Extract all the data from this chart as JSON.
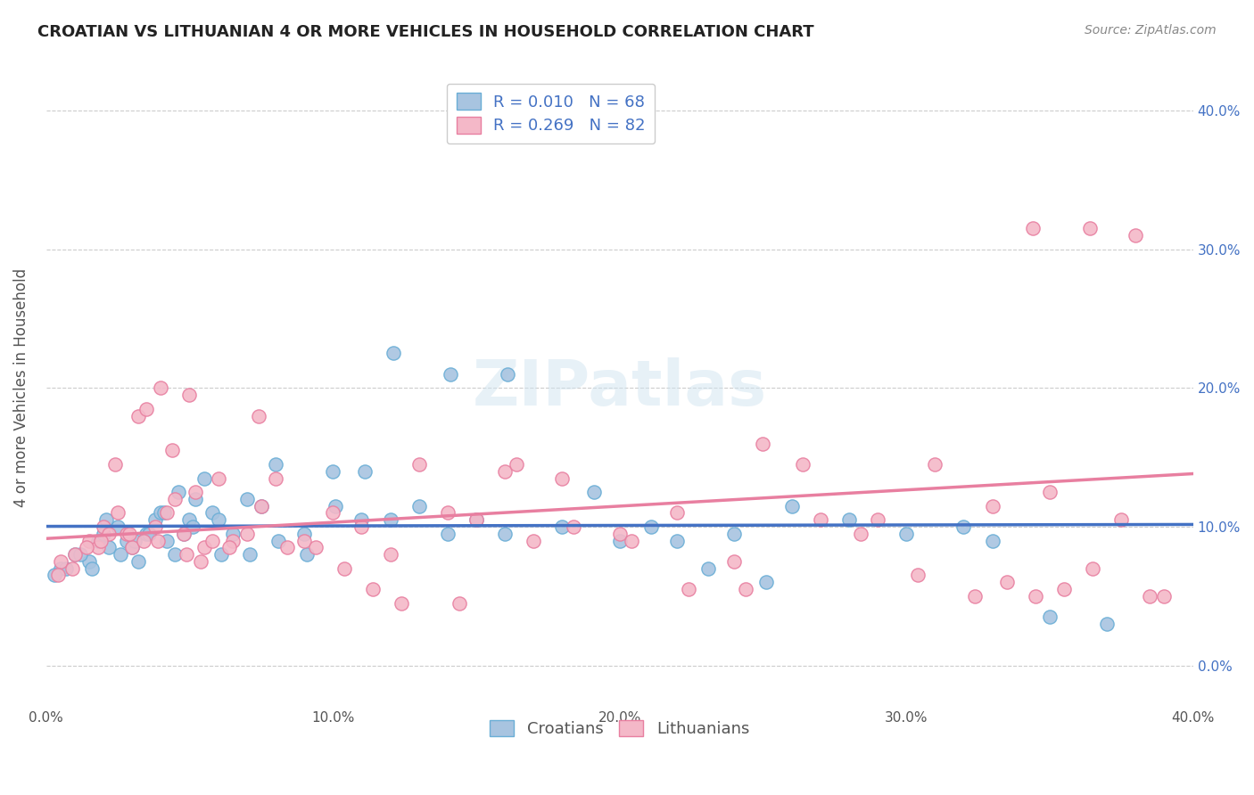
{
  "title": "CROATIAN VS LITHUANIAN 4 OR MORE VEHICLES IN HOUSEHOLD CORRELATION CHART",
  "source": "Source: ZipAtlas.com",
  "ylabel": "4 or more Vehicles in Household",
  "ytick_values": [
    0.0,
    10.0,
    20.0,
    30.0,
    40.0
  ],
  "xrange": [
    0.0,
    40.0
  ],
  "yrange": [
    -3.0,
    43.0
  ],
  "croatian_color": "#a8c4e0",
  "croatian_edge": "#6aaed6",
  "croatian_line_color": "#4472c4",
  "lithuanian_color": "#f4b8c8",
  "lithuanian_edge": "#e87fa0",
  "lithuanian_line_color": "#e87fa0",
  "legend_text_color": "#4472c4",
  "R_croatian": 0.01,
  "N_croatian": 68,
  "R_lithuanian": 0.269,
  "N_lithuanian": 82,
  "croatian_scatter_x": [
    0.5,
    1.0,
    1.5,
    1.8,
    2.0,
    2.2,
    2.5,
    2.8,
    3.0,
    3.2,
    3.5,
    3.8,
    4.0,
    4.2,
    4.5,
    4.8,
    5.0,
    5.2,
    5.5,
    5.8,
    6.0,
    6.5,
    7.0,
    7.5,
    8.0,
    9.0,
    10.0,
    11.0,
    12.0,
    13.0,
    14.0,
    15.0,
    16.0,
    18.0,
    20.0,
    22.0,
    24.0,
    26.0,
    28.0,
    30.0,
    32.0,
    33.0,
    35.0,
    37.0,
    0.3,
    0.7,
    1.2,
    1.6,
    2.1,
    2.6,
    3.1,
    3.6,
    4.1,
    4.6,
    5.1,
    6.1,
    7.1,
    8.1,
    9.1,
    10.1,
    11.1,
    12.1,
    14.1,
    16.1,
    19.1,
    21.1,
    23.1,
    25.1
  ],
  "croatian_scatter_y": [
    7.0,
    8.0,
    7.5,
    9.0,
    9.5,
    8.5,
    10.0,
    9.0,
    8.5,
    7.5,
    9.5,
    10.5,
    11.0,
    9.0,
    8.0,
    9.5,
    10.5,
    12.0,
    13.5,
    11.0,
    10.5,
    9.5,
    12.0,
    11.5,
    14.5,
    9.5,
    14.0,
    10.5,
    10.5,
    11.5,
    9.5,
    10.5,
    9.5,
    10.0,
    9.0,
    9.0,
    9.5,
    11.5,
    10.5,
    9.5,
    10.0,
    9.0,
    3.5,
    3.0,
    6.5,
    7.0,
    8.0,
    7.0,
    10.5,
    8.0,
    9.0,
    9.5,
    11.0,
    12.5,
    10.0,
    8.0,
    8.0,
    9.0,
    8.0,
    11.5,
    14.0,
    22.5,
    21.0,
    21.0,
    12.5,
    10.0,
    7.0,
    6.0
  ],
  "lithuanian_scatter_x": [
    0.5,
    1.0,
    1.5,
    1.8,
    2.0,
    2.2,
    2.5,
    2.8,
    3.0,
    3.2,
    3.5,
    3.8,
    4.0,
    4.2,
    4.5,
    4.8,
    5.0,
    5.2,
    5.5,
    5.8,
    6.0,
    6.5,
    7.0,
    7.5,
    8.0,
    9.0,
    10.0,
    11.0,
    12.0,
    13.0,
    14.0,
    15.0,
    16.0,
    17.0,
    18.0,
    20.0,
    22.0,
    24.0,
    25.0,
    27.0,
    29.0,
    31.0,
    33.0,
    35.0,
    0.4,
    0.9,
    1.4,
    1.9,
    2.4,
    2.9,
    3.4,
    3.9,
    4.4,
    4.9,
    5.4,
    6.4,
    7.4,
    8.4,
    9.4,
    10.4,
    11.4,
    12.4,
    14.4,
    16.4,
    18.4,
    20.4,
    22.4,
    24.4,
    26.4,
    28.4,
    30.4,
    32.4,
    34.4,
    36.4,
    38.0,
    39.0,
    38.5,
    37.5,
    36.5,
    35.5,
    34.5,
    33.5
  ],
  "lithuanian_scatter_y": [
    7.5,
    8.0,
    9.0,
    8.5,
    10.0,
    9.5,
    11.0,
    9.5,
    8.5,
    18.0,
    18.5,
    10.0,
    20.0,
    11.0,
    12.0,
    9.5,
    19.5,
    12.5,
    8.5,
    9.0,
    13.5,
    9.0,
    9.5,
    11.5,
    13.5,
    9.0,
    11.0,
    10.0,
    8.0,
    14.5,
    11.0,
    10.5,
    14.0,
    9.0,
    13.5,
    9.5,
    11.0,
    7.5,
    16.0,
    10.5,
    10.5,
    14.5,
    11.5,
    12.5,
    6.5,
    7.0,
    8.5,
    9.0,
    14.5,
    9.5,
    9.0,
    9.0,
    15.5,
    8.0,
    7.5,
    8.5,
    18.0,
    8.5,
    8.5,
    7.0,
    5.5,
    4.5,
    4.5,
    14.5,
    10.0,
    9.0,
    5.5,
    5.5,
    14.5,
    9.5,
    6.5,
    5.0,
    31.5,
    31.5,
    31.0,
    5.0,
    5.0,
    10.5,
    7.0,
    5.5,
    5.0,
    6.0
  ]
}
